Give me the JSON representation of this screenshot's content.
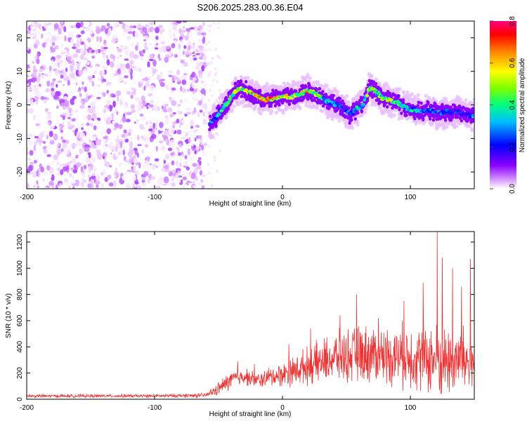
{
  "chart_data": [
    {
      "type": "heatmap",
      "title": "S206.2025.283.00.36.E04",
      "xlabel": "Height of straight line (km)",
      "ylabel": "Frequency (Hz)",
      "xlim": [
        -200,
        150
      ],
      "ylim": [
        -25,
        25
      ],
      "x_ticks": [
        -200,
        -100,
        0,
        100
      ],
      "y_ticks": [
        -20,
        -10,
        0,
        10,
        20
      ],
      "colorbar": {
        "label": "Normalized spectral amplitude",
        "range": [
          0.0,
          0.8
        ],
        "ticks": [
          0.0,
          0.2,
          0.4,
          0.6,
          0.8
        ],
        "colors": [
          "#ffffff",
          "#e0a8ff",
          "#8b00ff",
          "#0000ff",
          "#00bfff",
          "#00ff80",
          "#7fff00",
          "#ffff00",
          "#ff8000",
          "#ff0000",
          "#ff0080"
        ]
      },
      "noise_region_x": [
        -200,
        -60
      ],
      "ridge": {
        "x": [
          -57,
          -52,
          -47,
          -42,
          -37,
          -32,
          -27,
          -22,
          -17,
          -12,
          -7,
          -2,
          3,
          8,
          13,
          18,
          23,
          28,
          33,
          38,
          43,
          48,
          53,
          58,
          63,
          68,
          73,
          78,
          83,
          88,
          93,
          98,
          103,
          108,
          113,
          118,
          123,
          128,
          133,
          138,
          143,
          148
        ],
        "freq": [
          -6,
          -4,
          -1,
          1,
          4,
          5,
          4,
          3,
          2,
          1.5,
          2,
          2,
          2.5,
          2.5,
          3,
          4,
          4,
          3,
          1.5,
          0.5,
          0,
          -1,
          -3,
          -1,
          0,
          5,
          4,
          2,
          1.5,
          1,
          0,
          -1,
          -1.5,
          -2,
          -1.5,
          -2,
          -2.5,
          -2,
          -2.5,
          -2,
          -3,
          -3
        ],
        "amplitude": [
          0.3,
          0.35,
          0.45,
          0.5,
          0.6,
          0.65,
          0.55,
          0.7,
          0.75,
          0.8,
          0.7,
          0.6,
          0.65,
          0.6,
          0.55,
          0.7,
          0.65,
          0.5,
          0.45,
          0.4,
          0.35,
          0.3,
          0.3,
          0.4,
          0.45,
          0.55,
          0.5,
          0.55,
          0.6,
          0.5,
          0.45,
          0.4,
          0.4,
          0.35,
          0.3,
          0.35,
          0.3,
          0.3,
          0.25,
          0.3,
          0.25,
          0.3
        ]
      }
    },
    {
      "type": "line",
      "xlabel": "Height of straight line (km)",
      "ylabel": "SNR (10 * v/v)",
      "xlim": [
        -200,
        150
      ],
      "ylim": [
        0,
        1280
      ],
      "x_ticks": [
        -200,
        -100,
        0,
        100
      ],
      "y_ticks": [
        0,
        200,
        400,
        600,
        800,
        1000,
        1200
      ],
      "line_color": "#ee3333",
      "baseline": {
        "x": [
          -200,
          -150,
          -100,
          -60,
          -50,
          -40,
          -30,
          -20,
          -10,
          0,
          10,
          20,
          30,
          40,
          50,
          60,
          70,
          80,
          90,
          100,
          110,
          120,
          130,
          140,
          150
        ],
        "level": [
          25,
          25,
          25,
          30,
          80,
          150,
          180,
          140,
          170,
          190,
          220,
          260,
          280,
          320,
          330,
          340,
          350,
          340,
          330,
          330,
          320,
          300,
          290,
          300,
          280
        ],
        "spread": [
          15,
          15,
          15,
          20,
          60,
          90,
          80,
          70,
          90,
          110,
          140,
          170,
          200,
          220,
          240,
          260,
          270,
          260,
          280,
          300,
          320,
          340,
          330,
          320,
          300
        ]
      },
      "peaks": [
        {
          "x": -35,
          "y": 290
        },
        {
          "x": -22,
          "y": 270
        },
        {
          "x": 5,
          "y": 420
        },
        {
          "x": 22,
          "y": 540
        },
        {
          "x": 45,
          "y": 640
        },
        {
          "x": 58,
          "y": 800
        },
        {
          "x": 75,
          "y": 620
        },
        {
          "x": 95,
          "y": 750
        },
        {
          "x": 110,
          "y": 890
        },
        {
          "x": 121,
          "y": 1280
        },
        {
          "x": 125,
          "y": 1080
        },
        {
          "x": 133,
          "y": 1000
        },
        {
          "x": 140,
          "y": 860
        },
        {
          "x": 147,
          "y": 1070
        }
      ]
    }
  ]
}
